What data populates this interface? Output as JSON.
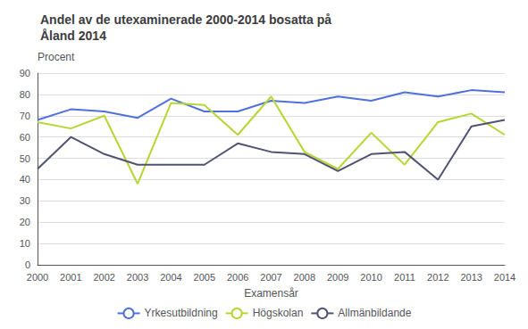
{
  "chart_data": {
    "type": "line",
    "title": "Andel av de utexaminerade 2000-2014 bosatta på\nÅland 2014",
    "ylabel": "Procent",
    "xlabel": "Examensår",
    "categories": [
      "2000",
      "2001",
      "2002",
      "2003",
      "2004",
      "2005",
      "2006",
      "2007",
      "2008",
      "2009",
      "2010",
      "2011",
      "2012",
      "2013",
      "2014"
    ],
    "series": [
      {
        "name": "Yrkesutbildning",
        "values": [
          68,
          73,
          72,
          69,
          78,
          72,
          72,
          77,
          76,
          79,
          77,
          81,
          79,
          82,
          81
        ]
      },
      {
        "name": "Högskolan",
        "values": [
          67,
          64,
          70,
          38,
          76,
          75,
          61,
          79,
          53,
          45,
          62,
          47,
          67,
          71,
          61
        ]
      },
      {
        "name": "Allmänbildande",
        "values": [
          45,
          60,
          52,
          47,
          47,
          47,
          57,
          53,
          52,
          44,
          52,
          53,
          40,
          65,
          68
        ]
      }
    ],
    "ylim": [
      0,
      90
    ],
    "yticks": [
      0,
      10,
      20,
      30,
      40,
      50,
      60,
      70,
      80,
      90
    ],
    "grid": true,
    "legend": "bottom"
  }
}
